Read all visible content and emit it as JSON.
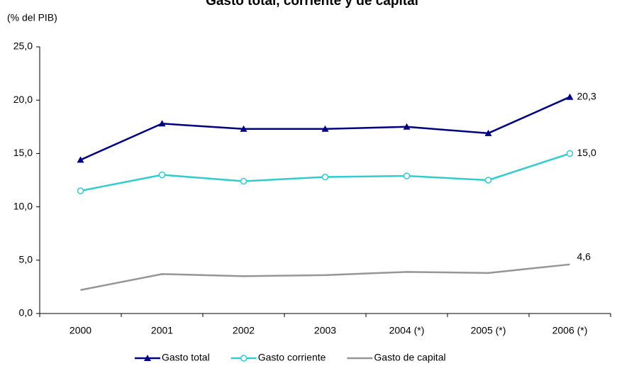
{
  "chart_data": {
    "type": "line",
    "title": "Gasto total, corriente y de capital",
    "subtitle": "(% del PIB)",
    "categories": [
      "2000",
      "2001",
      "2002",
      "2003",
      "2004 (*)",
      "2005 (*)",
      "2006 (*)"
    ],
    "series": [
      {
        "name": "Gasto total",
        "color": "#000080",
        "marker": "triangle",
        "values": [
          14.4,
          17.8,
          17.3,
          17.3,
          17.5,
          16.9,
          20.3
        ],
        "value_labels": [
          null,
          null,
          null,
          null,
          null,
          null,
          "20,3"
        ]
      },
      {
        "name": "Gasto corriente",
        "color": "#33cccc",
        "marker": "circle",
        "values": [
          11.5,
          13.0,
          12.4,
          12.8,
          12.9,
          12.5,
          15.0
        ],
        "value_labels": [
          null,
          null,
          null,
          null,
          null,
          null,
          "15,0"
        ]
      },
      {
        "name": "Gasto de capital",
        "color": "#969696",
        "marker": "none",
        "values": [
          2.2,
          3.7,
          3.5,
          3.6,
          3.9,
          3.8,
          4.6
        ],
        "value_labels": [
          null,
          null,
          null,
          null,
          null,
          null,
          "4,6"
        ]
      }
    ],
    "ylim": [
      0,
      25
    ],
    "yticks": [
      {
        "value": 0,
        "label": "0,0"
      },
      {
        "value": 5,
        "label": "5,0"
      },
      {
        "value": 10,
        "label": "10,0"
      },
      {
        "value": 15,
        "label": "15,0"
      },
      {
        "value": 20,
        "label": "20,0"
      },
      {
        "value": 25,
        "label": "25,0"
      }
    ],
    "grid": false,
    "legend": "bottom"
  }
}
